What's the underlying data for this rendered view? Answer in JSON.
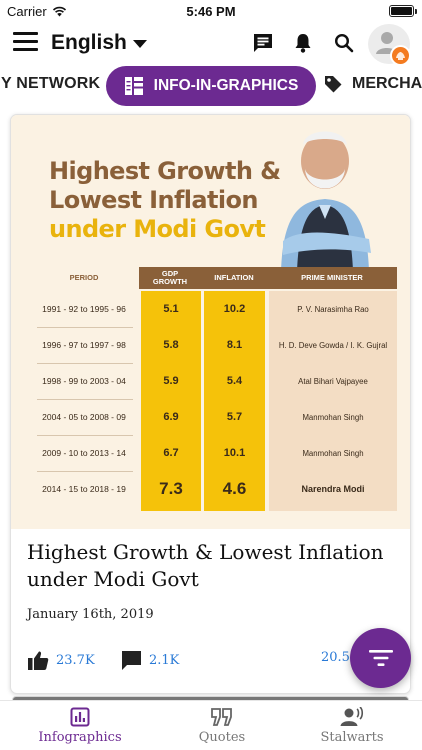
{
  "status_bar": {
    "carrier": "Carrier",
    "time": "5:46 PM"
  },
  "top_bar": {
    "language": "English"
  },
  "tabs": {
    "left_partial": "Y NETWORK",
    "active": "INFO-IN-GRAPHICS",
    "right_partial": "MERCHA"
  },
  "post": {
    "infographic": {
      "title_line1": "Highest Growth &",
      "title_line2": "Lowest Inflation",
      "title_line3": "under Modi Govt",
      "table": {
        "headers": {
          "period": "PERIOD",
          "gdp": "GDP\nGROWTH",
          "inflation": "INFLATION",
          "pm": "PRIME MINISTER"
        },
        "rows": [
          {
            "period": "1991 - 92 to 1995 - 96",
            "gdp": "5.1",
            "inflation": "10.2",
            "pm": "P. V. Narasimha Rao"
          },
          {
            "period": "1996 - 97 to 1997 - 98",
            "gdp": "5.8",
            "inflation": "8.1",
            "pm": "H. D. Deve Gowda / I. K. Gujral"
          },
          {
            "period": "1998 - 99 to 2003 - 04",
            "gdp": "5.9",
            "inflation": "5.4",
            "pm": "Atal Bihari Vajpayee"
          },
          {
            "period": "2004 - 05 to 2008 - 09",
            "gdp": "6.9",
            "inflation": "5.7",
            "pm": "Manmohan Singh"
          },
          {
            "period": "2009 - 10 to 2013 - 14",
            "gdp": "6.7",
            "inflation": "10.1",
            "pm": "Manmohan Singh"
          },
          {
            "period": "2014 - 15 to 2018 - 19",
            "gdp": "7.3",
            "inflation": "4.6",
            "pm": "Narendra Modi"
          }
        ]
      }
    },
    "title": "Highest Growth & Lowest Inflation under Modi Govt",
    "date": "January 16th, 2019",
    "likes": "23.7K",
    "comments": "2.1K",
    "shares_partial": "20.5"
  },
  "bottom_nav": {
    "items": [
      {
        "label": "Infographics",
        "icon": "infographics-icon",
        "active": true
      },
      {
        "label": "Quotes",
        "icon": "quotes-icon",
        "active": false
      },
      {
        "label": "Stalwarts",
        "icon": "stalwarts-icon",
        "active": false
      }
    ]
  },
  "colors": {
    "brand_purple": "#6c2a91",
    "link_blue": "#2a7ad6",
    "infographic_gold": "#f5c20a",
    "infographic_brown": "#8a6039",
    "saffron": "#f47b20"
  }
}
